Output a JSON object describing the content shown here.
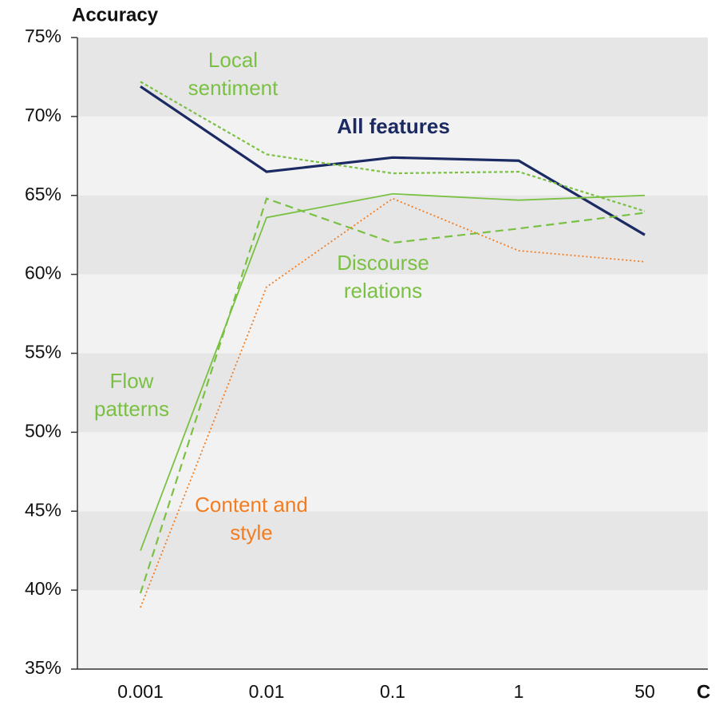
{
  "chart_data": {
    "type": "line",
    "y_label": "Accuracy",
    "x_label": "C",
    "categories": [
      "0.001",
      "0.01",
      "0.1",
      "1",
      "50"
    ],
    "ylim": [
      35,
      75
    ],
    "yticks": [
      {
        "value": 35,
        "label": "35%"
      },
      {
        "value": 40,
        "label": "40%"
      },
      {
        "value": 45,
        "label": "45%"
      },
      {
        "value": 50,
        "label": "50%"
      },
      {
        "value": 55,
        "label": "55%"
      },
      {
        "value": 60,
        "label": "60%"
      },
      {
        "value": 65,
        "label": "65%"
      },
      {
        "value": 70,
        "label": "70%"
      },
      {
        "value": 75,
        "label": "75%"
      }
    ],
    "grid": "bands",
    "series": [
      {
        "name": "All features",
        "color": "#1b2a63",
        "style": "bold",
        "values": [
          71.9,
          66.5,
          67.4,
          67.2,
          62.5
        ]
      },
      {
        "name": "Local sentiment",
        "color": "#7ac143",
        "style": "dotted",
        "values": [
          72.2,
          67.6,
          66.4,
          66.5,
          64.0
        ]
      },
      {
        "name": "Flow patterns",
        "color": "#7ac143",
        "style": "solid",
        "values": [
          42.5,
          63.6,
          65.1,
          64.7,
          65.0
        ]
      },
      {
        "name": "Discourse relations",
        "color": "#7ac143",
        "style": "dashed",
        "values": [
          39.8,
          64.8,
          62.0,
          62.9,
          63.9
        ]
      },
      {
        "name": "Content and style",
        "color": "#f47c20",
        "style": "dotted-fine",
        "values": [
          38.9,
          59.2,
          64.8,
          61.5,
          60.8
        ]
      }
    ]
  }
}
